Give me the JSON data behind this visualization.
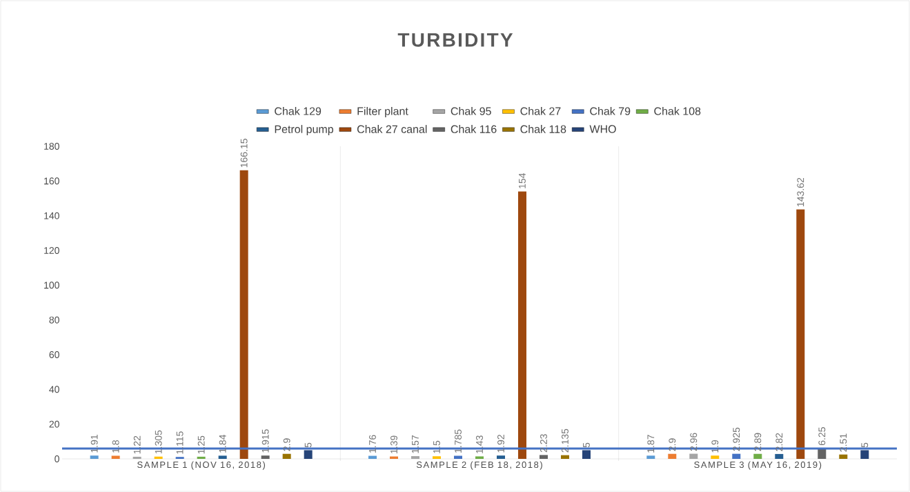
{
  "chart_data": {
    "type": "bar",
    "title": "TURBIDITY",
    "categories": [
      "SAMPLE 1 (NOV 16, 2018)",
      "SAMPLE 2 (FEB 18, 2018)",
      "SAMPLE 3 (MAY 16, 2019)"
    ],
    "series": [
      {
        "name": "Chak 129",
        "color": "#5b9bd5",
        "values": [
          1.91,
          1.76,
          1.87
        ]
      },
      {
        "name": "Filter plant",
        "color": "#ed7d31",
        "values": [
          1.8,
          1.39,
          2.9
        ]
      },
      {
        "name": "Chak 95",
        "color": "#a5a5a5",
        "values": [
          1.22,
          1.57,
          2.96
        ]
      },
      {
        "name": "Chak 27",
        "color": "#ffc000",
        "values": [
          1.305,
          1.5,
          1.9
        ]
      },
      {
        "name": "Chak 79",
        "color": "#4472c4",
        "values": [
          1.115,
          1.785,
          2.925
        ]
      },
      {
        "name": "Chak 108",
        "color": "#70ad47",
        "values": [
          1.25,
          1.43,
          2.89
        ]
      },
      {
        "name": "Petrol pump",
        "color": "#255e91",
        "values": [
          1.84,
          1.92,
          2.82
        ]
      },
      {
        "name": "Chak 27 canal",
        "color": "#9e480e",
        "values": [
          166.15,
          154,
          143.62
        ]
      },
      {
        "name": "Chak 116",
        "color": "#636363",
        "values": [
          1.915,
          2.23,
          6.25
        ]
      },
      {
        "name": "Chak 118",
        "color": "#997300",
        "values": [
          2.9,
          2.135,
          2.51
        ]
      },
      {
        "name": "WHO",
        "color": "#264478",
        "values": [
          5,
          5,
          5
        ]
      }
    ],
    "ylim": [
      0,
      180
    ],
    "yticks": [
      0,
      20,
      40,
      60,
      80,
      100,
      120,
      140,
      160,
      180
    ],
    "grid": "x",
    "legend": "top",
    "data_labels": true,
    "ref_lines": [
      {
        "axis": "y",
        "value": 6,
        "color": "#4472c4"
      }
    ]
  }
}
